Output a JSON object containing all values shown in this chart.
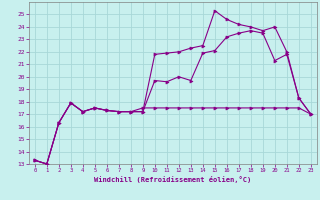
{
  "xlabel": "Windchill (Refroidissement éolien,°C)",
  "background_color": "#c8f0ee",
  "grid_color": "#a8d8d8",
  "line_color": "#880088",
  "xlim": [
    -0.5,
    23.5
  ],
  "ylim": [
    13,
    26
  ],
  "xticks": [
    0,
    1,
    2,
    3,
    4,
    5,
    6,
    7,
    8,
    9,
    10,
    11,
    12,
    13,
    14,
    15,
    16,
    17,
    18,
    19,
    20,
    21,
    22,
    23
  ],
  "yticks": [
    13,
    14,
    15,
    16,
    17,
    18,
    19,
    20,
    21,
    22,
    23,
    24,
    25
  ],
  "line1_x": [
    0,
    1,
    2,
    3,
    4,
    5,
    6,
    7,
    8,
    9,
    10,
    11,
    12,
    13,
    14,
    15,
    16,
    17,
    18,
    19,
    20,
    21,
    22,
    23
  ],
  "line1_y": [
    13.3,
    13.0,
    16.3,
    17.9,
    17.2,
    17.5,
    17.3,
    17.2,
    17.2,
    17.2,
    21.8,
    21.9,
    22.0,
    22.3,
    22.5,
    25.3,
    24.6,
    24.2,
    24.0,
    23.7,
    24.0,
    22.0,
    18.3,
    17.0
  ],
  "line2_x": [
    0,
    1,
    2,
    3,
    4,
    5,
    6,
    7,
    8,
    9,
    10,
    11,
    12,
    13,
    14,
    15,
    16,
    17,
    18,
    19,
    20,
    21,
    22,
    23
  ],
  "line2_y": [
    13.3,
    13.0,
    16.3,
    17.9,
    17.2,
    17.5,
    17.3,
    17.2,
    17.2,
    17.2,
    19.7,
    19.6,
    20.0,
    19.7,
    21.9,
    22.1,
    23.2,
    23.5,
    23.7,
    23.5,
    21.3,
    21.8,
    18.3,
    17.0
  ],
  "line3_x": [
    0,
    1,
    2,
    3,
    4,
    5,
    6,
    7,
    8,
    9,
    10,
    11,
    12,
    13,
    14,
    15,
    16,
    17,
    18,
    19,
    20,
    21,
    22,
    23
  ],
  "line3_y": [
    13.3,
    13.0,
    16.3,
    17.9,
    17.2,
    17.5,
    17.3,
    17.2,
    17.2,
    17.5,
    17.5,
    17.5,
    17.5,
    17.5,
    17.5,
    17.5,
    17.5,
    17.5,
    17.5,
    17.5,
    17.5,
    17.5,
    17.5,
    17.0
  ]
}
